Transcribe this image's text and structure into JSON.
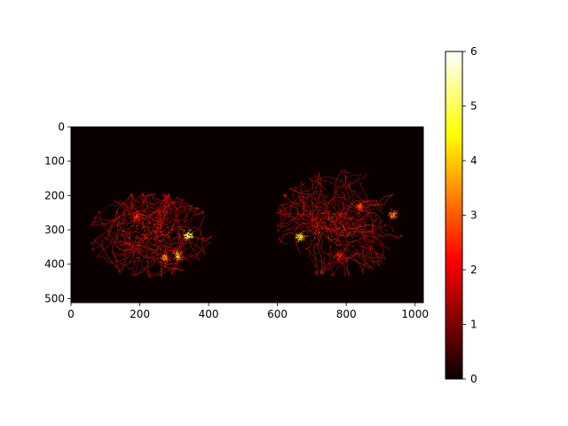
{
  "chart_data": {
    "type": "heatmap",
    "title": "",
    "xlabel": "",
    "ylabel": "",
    "xlim": [
      0,
      1024
    ],
    "ylim": [
      512,
      0
    ],
    "x_ticks": [
      "0",
      "200",
      "400",
      "600",
      "800",
      "1000"
    ],
    "y_ticks": [
      "0",
      "100",
      "200",
      "300",
      "400",
      "500"
    ],
    "colormap": "hot",
    "colorbar": {
      "range": [
        0,
        6
      ],
      "ticks": [
        "0",
        "1",
        "2",
        "3",
        "4",
        "5",
        "6"
      ]
    },
    "background_value": 0,
    "clusters": [
      {
        "name_hint": "left",
        "x_range": [
          55,
          405
        ],
        "y_range": [
          195,
          435
        ],
        "hotspots": [
          {
            "x": 340,
            "y": 315,
            "value": 5.5
          },
          {
            "x": 310,
            "y": 375,
            "value": 4.5
          },
          {
            "x": 270,
            "y": 380,
            "value": 4
          },
          {
            "x": 190,
            "y": 260,
            "value": 3
          }
        ]
      },
      {
        "name_hint": "right",
        "x_range": [
          600,
          960
        ],
        "y_range": [
          130,
          430
        ],
        "hotspots": [
          {
            "x": 665,
            "y": 320,
            "value": 5
          },
          {
            "x": 935,
            "y": 255,
            "value": 4
          },
          {
            "x": 840,
            "y": 230,
            "value": 3.5
          },
          {
            "x": 780,
            "y": 375,
            "value": 3
          }
        ]
      }
    ]
  }
}
